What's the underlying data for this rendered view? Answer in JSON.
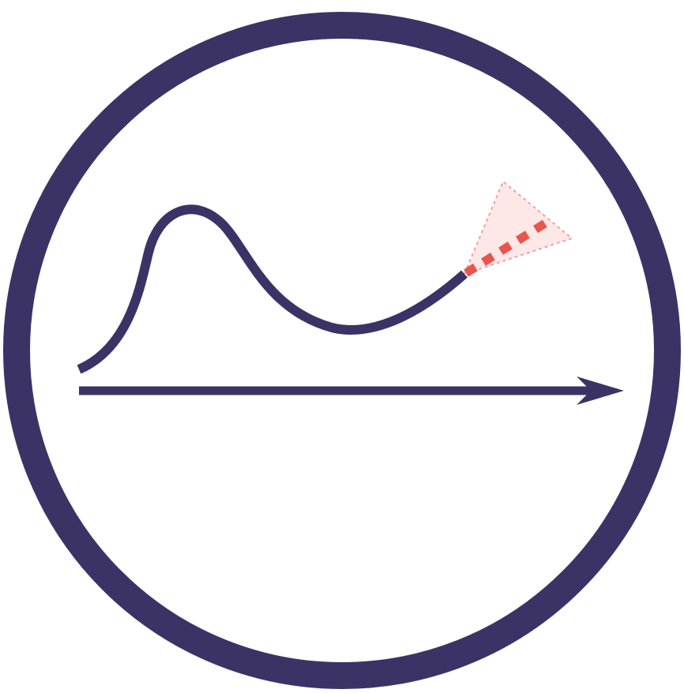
{
  "icon": {
    "name": "forecast-trend-icon",
    "colors": {
      "primary": "#3b3366",
      "forecast_line": "#e8554f",
      "forecast_fill": "#fde8e7",
      "forecast_edge": "#f0a29e",
      "background": "#ffffff"
    }
  }
}
